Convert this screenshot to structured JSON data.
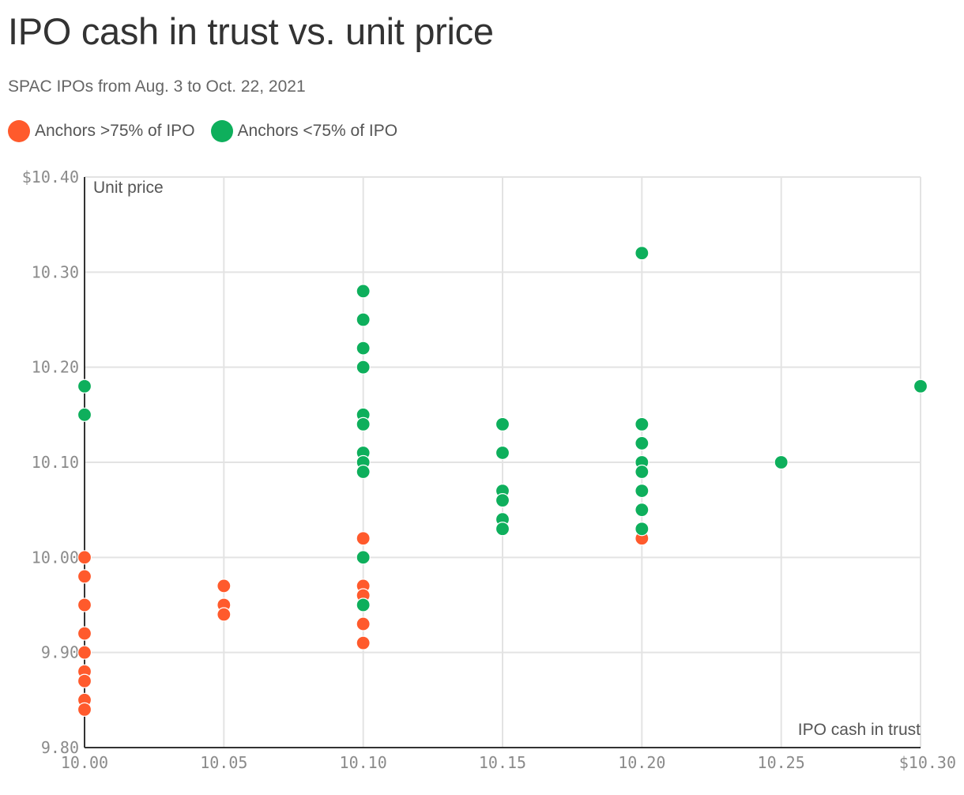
{
  "title": "IPO cash in trust vs. unit price",
  "subtitle": "SPAC IPOs from Aug. 3 to Oct. 22, 2021",
  "legend": [
    {
      "label": "Anchors >75% of IPO",
      "color": "#FF5A2C"
    },
    {
      "label": "Anchors <75% of IPO",
      "color": "#0EAF5C"
    }
  ],
  "chart_data": {
    "type": "scatter",
    "xlabel": "IPO cash in trust",
    "ylabel": "Unit price",
    "xlim": [
      10.0,
      10.3
    ],
    "ylim": [
      9.8,
      10.4
    ],
    "x_ticks": [
      {
        "value": 10.0,
        "label": "10.00"
      },
      {
        "value": 10.05,
        "label": "10.05"
      },
      {
        "value": 10.1,
        "label": "10.10"
      },
      {
        "value": 10.15,
        "label": "10.15"
      },
      {
        "value": 10.2,
        "label": "10.20"
      },
      {
        "value": 10.25,
        "label": "10.25"
      },
      {
        "value": 10.3,
        "label": "$10.30"
      }
    ],
    "y_ticks": [
      {
        "value": 9.8,
        "label": "9.80"
      },
      {
        "value": 9.9,
        "label": "9.90"
      },
      {
        "value": 10.0,
        "label": "10.00"
      },
      {
        "value": 10.1,
        "label": "10.10"
      },
      {
        "value": 10.2,
        "label": "10.20"
      },
      {
        "value": 10.3,
        "label": "10.30"
      },
      {
        "value": 10.4,
        "label": "$10.40"
      }
    ],
    "grid": true,
    "series": [
      {
        "name": "Anchors >75% of IPO",
        "color": "#FF5A2C",
        "points": [
          [
            10.0,
            10.0
          ],
          [
            10.0,
            9.98
          ],
          [
            10.0,
            9.95
          ],
          [
            10.0,
            9.92
          ],
          [
            10.0,
            9.9
          ],
          [
            10.0,
            9.88
          ],
          [
            10.0,
            9.87
          ],
          [
            10.0,
            9.85
          ],
          [
            10.0,
            9.84
          ],
          [
            10.05,
            9.97
          ],
          [
            10.05,
            9.95
          ],
          [
            10.05,
            9.94
          ],
          [
            10.1,
            10.02
          ],
          [
            10.1,
            9.97
          ],
          [
            10.1,
            9.96
          ],
          [
            10.1,
            9.93
          ],
          [
            10.1,
            9.91
          ],
          [
            10.2,
            10.02
          ]
        ]
      },
      {
        "name": "Anchors <75% of IPO",
        "color": "#0EAF5C",
        "points": [
          [
            10.0,
            10.18
          ],
          [
            10.0,
            10.15
          ],
          [
            10.1,
            10.28
          ],
          [
            10.1,
            10.25
          ],
          [
            10.1,
            10.22
          ],
          [
            10.1,
            10.2
          ],
          [
            10.1,
            10.15
          ],
          [
            10.1,
            10.14
          ],
          [
            10.1,
            10.11
          ],
          [
            10.1,
            10.1
          ],
          [
            10.1,
            10.09
          ],
          [
            10.1,
            10.0
          ],
          [
            10.1,
            9.95
          ],
          [
            10.15,
            10.14
          ],
          [
            10.15,
            10.11
          ],
          [
            10.15,
            10.07
          ],
          [
            10.15,
            10.06
          ],
          [
            10.15,
            10.04
          ],
          [
            10.15,
            10.03
          ],
          [
            10.2,
            10.32
          ],
          [
            10.2,
            10.14
          ],
          [
            10.2,
            10.12
          ],
          [
            10.2,
            10.1
          ],
          [
            10.2,
            10.09
          ],
          [
            10.2,
            10.07
          ],
          [
            10.2,
            10.05
          ],
          [
            10.2,
            10.03
          ],
          [
            10.25,
            10.1
          ],
          [
            10.3,
            10.18
          ]
        ]
      }
    ]
  }
}
